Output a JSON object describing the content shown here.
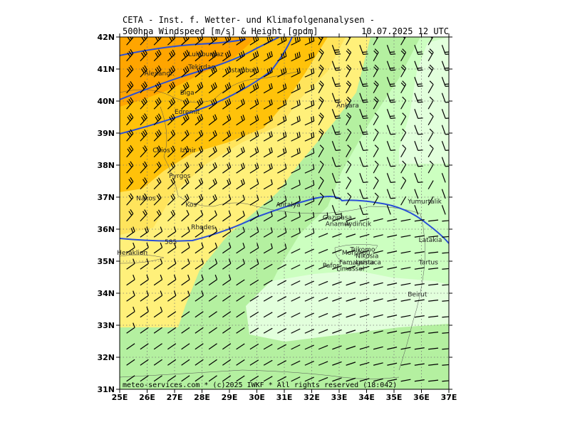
{
  "header": {
    "line1": "CETA - Inst. f. Wetter- und Klimafolgenanalysen -",
    "line2_left": "500hpa Windspeed [m/s] & Height [gpdm]",
    "line2_right": "10.07.2025 12 UTC"
  },
  "axes": {
    "lat_labels": [
      "42N",
      "41N",
      "40N",
      "39N",
      "38N",
      "37N",
      "36N",
      "35N",
      "34N",
      "33N",
      "32N",
      "31N"
    ],
    "lon_labels": [
      "25E",
      "26E",
      "27E",
      "28E",
      "29E",
      "30E",
      "31E",
      "32E",
      "33E",
      "34E",
      "35E",
      "36E",
      "37E"
    ]
  },
  "colors": {
    "orange_dark": "#ffa500",
    "orange": "#ffc20a",
    "yellow": "#ffe45c",
    "yellow_light": "#fff07a",
    "green": "#b4f0a0",
    "green_light": "#ccffc0",
    "green_pale": "#e2ffdc",
    "contour": "#2a4fd6",
    "barb": "#000000"
  },
  "contour_label": "585",
  "cities": [
    {
      "name": "Luleburgaz",
      "lon": 27.5,
      "lat": 41.4
    },
    {
      "name": "Tekirdag",
      "lon": 27.5,
      "lat": 41.0
    },
    {
      "name": "Istanbul",
      "lon": 29.0,
      "lat": 40.9
    },
    {
      "name": "Alexandr.",
      "lon": 25.9,
      "lat": 40.8
    },
    {
      "name": "Biga",
      "lon": 27.2,
      "lat": 40.2
    },
    {
      "name": "Edremit",
      "lon": 27.0,
      "lat": 39.6
    },
    {
      "name": "Ankara",
      "lon": 32.9,
      "lat": 39.8
    },
    {
      "name": "Izmir",
      "lon": 27.2,
      "lat": 38.4
    },
    {
      "name": "Chios",
      "lon": 26.2,
      "lat": 38.4
    },
    {
      "name": "Pyrgos",
      "lon": 26.8,
      "lat": 37.6
    },
    {
      "name": "Naxos",
      "lon": 25.6,
      "lat": 36.9
    },
    {
      "name": "Kos",
      "lon": 27.4,
      "lat": 36.7
    },
    {
      "name": "Antalya",
      "lon": 30.7,
      "lat": 36.7
    },
    {
      "name": "Yumurtalik",
      "lon": 35.5,
      "lat": 36.8
    },
    {
      "name": "Gazipasa",
      "lon": 32.4,
      "lat": 36.3
    },
    {
      "name": "Anamur",
      "lon": 32.5,
      "lat": 36.1
    },
    {
      "name": "Aydincik",
      "lon": 33.2,
      "lat": 36.1
    },
    {
      "name": "Rhodes",
      "lon": 27.6,
      "lat": 36.0
    },
    {
      "name": "Latakia",
      "lon": 35.9,
      "lat": 35.6
    },
    {
      "name": "Heraklion",
      "lon": 24.9,
      "lat": 35.2
    },
    {
      "name": "Trikomo",
      "lon": 33.4,
      "lat": 35.3
    },
    {
      "name": "Morphou",
      "lon": 33.1,
      "lat": 35.2
    },
    {
      "name": "Nikosia",
      "lon": 33.6,
      "lat": 35.1
    },
    {
      "name": "Pafos",
      "lon": 32.4,
      "lat": 34.8
    },
    {
      "name": "Larnaca",
      "lon": 33.6,
      "lat": 34.9
    },
    {
      "name": "Famagusta",
      "lon": 33.0,
      "lat": 34.9
    },
    {
      "name": "Limassol",
      "lon": 32.9,
      "lat": 34.7
    },
    {
      "name": "Tartus",
      "lon": 35.9,
      "lat": 34.9
    },
    {
      "name": "Beirut",
      "lon": 35.5,
      "lat": 33.9
    }
  ],
  "footer": "meteo-services.com * (c)2025 IWKF * All rights reserved (18:042)"
}
